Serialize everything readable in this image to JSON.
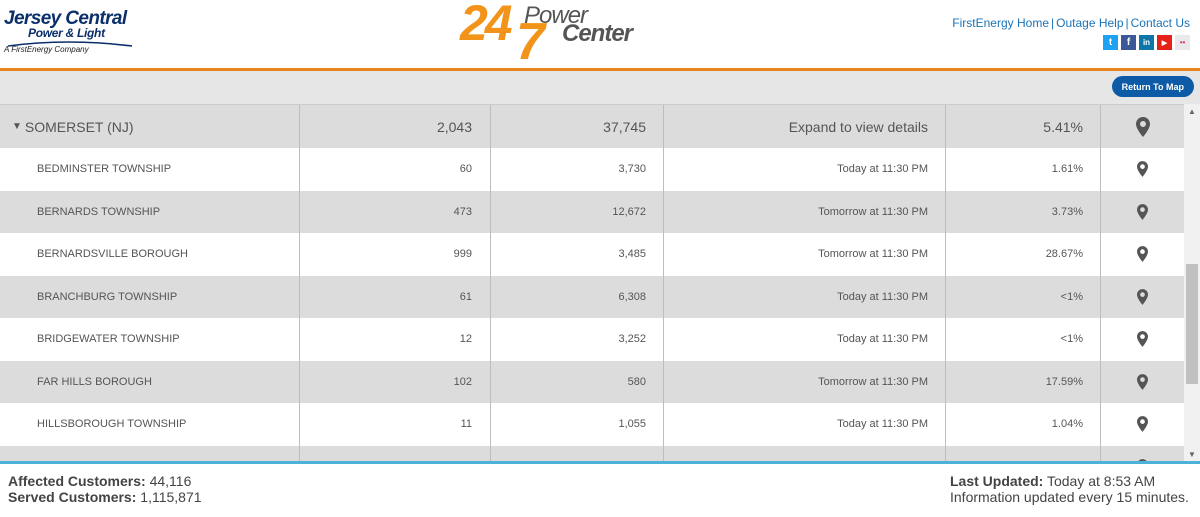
{
  "header": {
    "brand": {
      "line1": "Jersey Central",
      "line2": "Power & Light",
      "tagline": "A FirstEnergy Company",
      "color": "#0a2f6b"
    },
    "logo": {
      "num24": "24",
      "num7": "7",
      "word1": "Power",
      "word2": "Center",
      "accent": "#f29419"
    },
    "links": {
      "firstenergy_home": "FirstEnergy Home",
      "sep": "|",
      "outage_help": "Outage Help",
      "contact_us": "Contact Us"
    },
    "socials": [
      {
        "icon": "twitter-icon",
        "glyph": "t",
        "color": "#1da1f2"
      },
      {
        "icon": "facebook-icon",
        "glyph": "f",
        "color": "#3b5998"
      },
      {
        "icon": "linkedin-icon",
        "glyph": "in",
        "color": "#0e76a8"
      },
      {
        "icon": "youtube-icon",
        "glyph": "▶",
        "color": "#e62117"
      },
      {
        "icon": "flickr-icon",
        "glyph": "••",
        "color": "#cfcfcf"
      }
    ]
  },
  "toolbar": {
    "return_label": "Return To Map"
  },
  "table": {
    "county": {
      "name": "SOMERSET (NJ)",
      "out": "2,043",
      "served": "37,745",
      "etr": "Expand to view details",
      "pct": "5.41%"
    },
    "rows": [
      {
        "name": "BEDMINSTER TOWNSHIP",
        "out": "60",
        "served": "3,730",
        "etr": "Today at 11:30 PM",
        "pct": "1.61%"
      },
      {
        "name": "BERNARDS TOWNSHIP",
        "out": "473",
        "served": "12,672",
        "etr": "Tomorrow at 11:30 PM",
        "pct": "3.73%"
      },
      {
        "name": "BERNARDSVILLE BOROUGH",
        "out": "999",
        "served": "3,485",
        "etr": "Tomorrow at 11:30 PM",
        "pct": "28.67%"
      },
      {
        "name": "BRANCHBURG TOWNSHIP",
        "out": "61",
        "served": "6,308",
        "etr": "Today at 11:30 PM",
        "pct": "<1%"
      },
      {
        "name": "BRIDGEWATER TOWNSHIP",
        "out": "12",
        "served": "3,252",
        "etr": "Today at 11:30 PM",
        "pct": "<1%"
      },
      {
        "name": "FAR HILLS BOROUGH",
        "out": "102",
        "served": "580",
        "etr": "Tomorrow at 11:30 PM",
        "pct": "17.59%"
      },
      {
        "name": "HILLSBOROUGH TOWNSHIP",
        "out": "11",
        "served": "1,055",
        "etr": "Today at 11:30 PM",
        "pct": "1.04%"
      },
      {
        "name": "",
        "out": "",
        "served": "",
        "etr": "",
        "pct": ""
      }
    ]
  },
  "footer": {
    "affected_label": "Affected Customers:",
    "affected_value": "44,116",
    "served_label": "Served Customers:",
    "served_value": "1,115,871",
    "updated_label": "Last Updated:",
    "updated_value": "Today at 8:53 AM",
    "note": "Information updated every 15 minutes."
  },
  "colors": {
    "header_rule": "#e8851e",
    "footer_rule": "#4ab3d6",
    "button": "#0d5aa7",
    "link": "#1a73b8"
  }
}
